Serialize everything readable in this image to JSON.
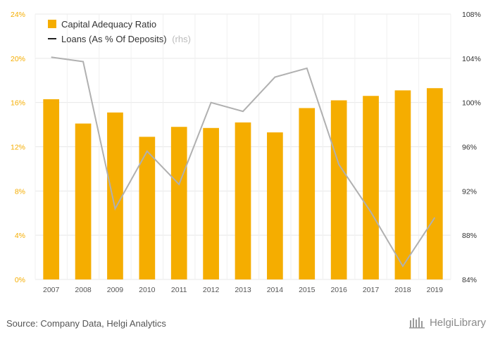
{
  "chart_data": {
    "type": "bar",
    "categories": [
      "2007",
      "2008",
      "2009",
      "2010",
      "2011",
      "2012",
      "2013",
      "2014",
      "2015",
      "2016",
      "2017",
      "2018",
      "2019"
    ],
    "series": [
      {
        "name": "Capital Adequacy Ratio",
        "type": "bar",
        "axis": "left",
        "color": "#f5ad00",
        "values": [
          16.3,
          14.1,
          15.1,
          12.9,
          13.8,
          13.7,
          14.2,
          13.3,
          15.5,
          16.2,
          16.6,
          17.1,
          17.3
        ]
      },
      {
        "name": "Loans (As % Of Deposits)",
        "suffix": "(rhs)",
        "type": "line",
        "axis": "right",
        "color": "#b0b0b0",
        "values": [
          104.1,
          103.7,
          90.4,
          95.6,
          92.6,
          100.0,
          99.2,
          102.3,
          103.1,
          94.4,
          90.1,
          85.2,
          89.6
        ]
      }
    ],
    "y_left": {
      "ticks": [
        "0%",
        "4%",
        "8%",
        "12%",
        "16%",
        "20%",
        "24%"
      ],
      "min": 0,
      "max": 24,
      "tick_color": "#f5ad00"
    },
    "y_right": {
      "ticks": [
        "84%",
        "88%",
        "92%",
        "96%",
        "100%",
        "104%",
        "108%"
      ],
      "min": 84,
      "max": 108
    },
    "grid": true,
    "legend_position": "top-left"
  },
  "footer": {
    "source": "Source: Company Data, Helgi Analytics",
    "logo": "HelgiLibrary"
  }
}
